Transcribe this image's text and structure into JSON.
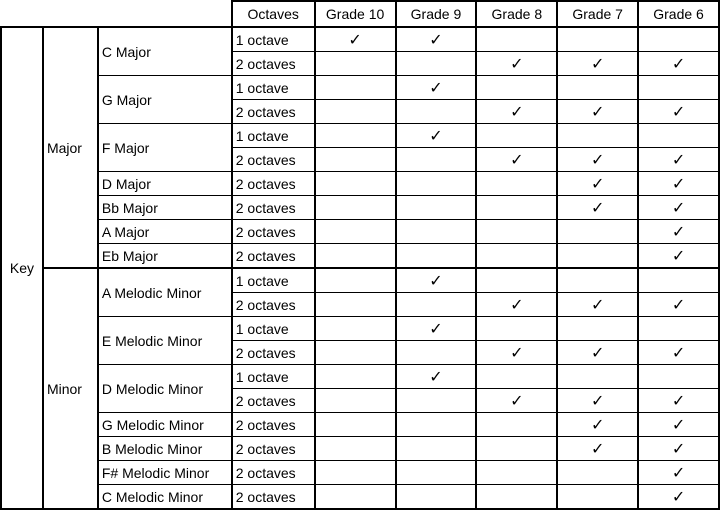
{
  "header": {
    "octaves": "Octaves",
    "grades": [
      "Grade 10",
      "Grade 9",
      "Grade 8",
      "Grade 7",
      "Grade 6"
    ]
  },
  "key_label": "Key",
  "check_glyph": "✓",
  "groups": [
    {
      "label": "Major",
      "keys": [
        {
          "name": "C Major",
          "rows": [
            {
              "octaves": "1 octave",
              "checks": [
                true,
                true,
                false,
                false,
                false
              ]
            },
            {
              "octaves": "2 octaves",
              "checks": [
                false,
                false,
                true,
                true,
                true
              ]
            }
          ]
        },
        {
          "name": "G Major",
          "rows": [
            {
              "octaves": "1 octave",
              "checks": [
                false,
                true,
                false,
                false,
                false
              ]
            },
            {
              "octaves": "2 octaves",
              "checks": [
                false,
                false,
                true,
                true,
                true
              ]
            }
          ]
        },
        {
          "name": "F Major",
          "rows": [
            {
              "octaves": "1 octave",
              "checks": [
                false,
                true,
                false,
                false,
                false
              ]
            },
            {
              "octaves": "2 octaves",
              "checks": [
                false,
                false,
                true,
                true,
                true
              ]
            }
          ]
        },
        {
          "name": "D Major",
          "rows": [
            {
              "octaves": "2 octaves",
              "checks": [
                false,
                false,
                false,
                true,
                true
              ]
            }
          ]
        },
        {
          "name": "Bb Major",
          "rows": [
            {
              "octaves": "2 octaves",
              "checks": [
                false,
                false,
                false,
                true,
                true
              ]
            }
          ]
        },
        {
          "name": "A Major",
          "rows": [
            {
              "octaves": "2 octaves",
              "checks": [
                false,
                false,
                false,
                false,
                true
              ]
            }
          ]
        },
        {
          "name": "Eb Major",
          "rows": [
            {
              "octaves": "2 octaves",
              "checks": [
                false,
                false,
                false,
                false,
                true
              ]
            }
          ]
        }
      ]
    },
    {
      "label": "Minor",
      "keys": [
        {
          "name": "A Melodic Minor",
          "rows": [
            {
              "octaves": "1 octave",
              "checks": [
                false,
                true,
                false,
                false,
                false
              ]
            },
            {
              "octaves": "2 octaves",
              "checks": [
                false,
                false,
                true,
                true,
                true
              ]
            }
          ]
        },
        {
          "name": "E Melodic Minor",
          "rows": [
            {
              "octaves": "1 octave",
              "checks": [
                false,
                true,
                false,
                false,
                false
              ]
            },
            {
              "octaves": "2 octaves",
              "checks": [
                false,
                false,
                true,
                true,
                true
              ]
            }
          ]
        },
        {
          "name": "D Melodic Minor",
          "rows": [
            {
              "octaves": "1 octave",
              "checks": [
                false,
                true,
                false,
                false,
                false
              ]
            },
            {
              "octaves": "2 octaves",
              "checks": [
                false,
                false,
                true,
                true,
                true
              ]
            }
          ]
        },
        {
          "name": "G Melodic Minor",
          "rows": [
            {
              "octaves": "2 octaves",
              "checks": [
                false,
                false,
                false,
                true,
                true
              ]
            }
          ]
        },
        {
          "name": "B Melodic Minor",
          "rows": [
            {
              "octaves": "2 octaves",
              "checks": [
                false,
                false,
                false,
                true,
                true
              ]
            }
          ]
        },
        {
          "name": "F# Melodic Minor",
          "rows": [
            {
              "octaves": "2 octaves",
              "checks": [
                false,
                false,
                false,
                false,
                true
              ]
            }
          ]
        },
        {
          "name": "C Melodic Minor",
          "rows": [
            {
              "octaves": "2 octaves",
              "checks": [
                false,
                false,
                false,
                false,
                true
              ]
            }
          ]
        }
      ]
    }
  ]
}
